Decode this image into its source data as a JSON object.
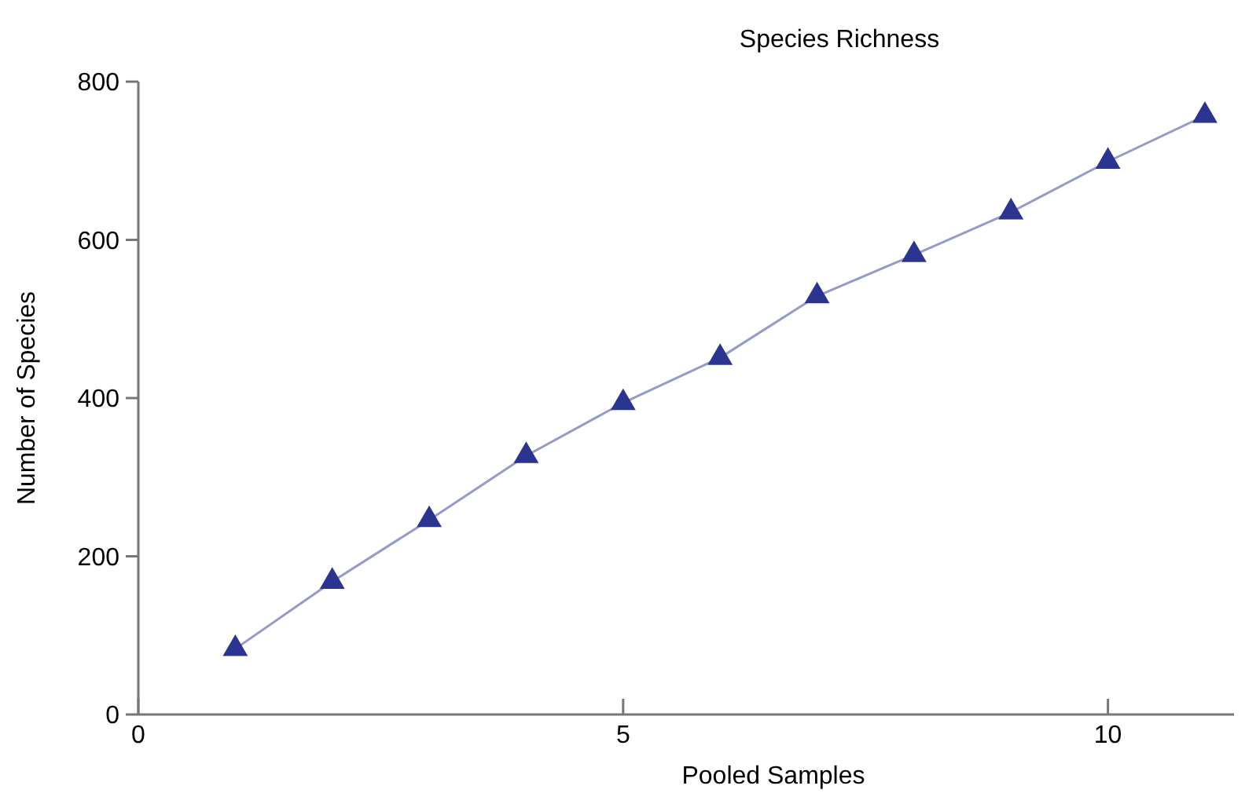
{
  "chart_data": {
    "type": "line",
    "title": "Species Richness",
    "xlabel": "Pooled Samples",
    "ylabel": "Number of Species",
    "x": [
      1,
      2,
      3,
      4,
      5,
      6,
      7,
      8,
      9,
      10,
      11
    ],
    "series": [
      {
        "color": "#2b3590",
        "values": [
          83,
          168,
          246,
          327,
          394,
          451,
          529,
          581,
          635,
          699,
          757
        ]
      }
    ],
    "xlim": [
      0,
      11.3
    ],
    "xticks": [
      0,
      5,
      10
    ],
    "ylim": [
      0,
      800
    ],
    "yticks": [
      0,
      200,
      400,
      600,
      800
    ],
    "marker": "triangle",
    "line_style": "solid",
    "grid": false
  }
}
